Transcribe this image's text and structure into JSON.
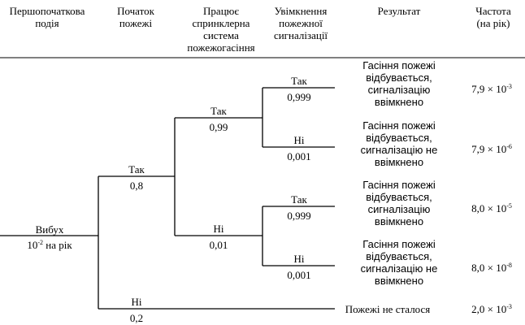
{
  "header": {
    "col1": [
      "Першопочаткова",
      "подія"
    ],
    "col2": [
      "Початок",
      "пожежі"
    ],
    "col3": [
      "Працює",
      "спринклерна",
      "система",
      "пожежогасіння"
    ],
    "col4": [
      "Увімкнення",
      "пожежної",
      "сигналізації"
    ],
    "col5": [
      "Результат"
    ],
    "col6": [
      "Частота",
      "(на рік)"
    ]
  },
  "initiating_event": {
    "name": "Вибух",
    "freq_base": "10",
    "freq_exp": "-2",
    "freq_unit": " на рік"
  },
  "branches": {
    "fire_yes": {
      "label": "Так",
      "prob": "0,8"
    },
    "fire_no": {
      "label": "Ні",
      "prob": "0,2"
    },
    "sprinkler_yes": {
      "label": "Так",
      "prob": "0,99"
    },
    "sprinkler_no": {
      "label": "Ні",
      "prob": "0,01"
    },
    "alarm_yes_1": {
      "label": "Так",
      "prob": "0,999"
    },
    "alarm_no_1": {
      "label": "Ні",
      "prob": "0,001"
    },
    "alarm_yes_2": {
      "label": "Так",
      "prob": "0,999"
    },
    "alarm_no_2": {
      "label": "Ні",
      "prob": "0,001"
    }
  },
  "outcomes": [
    {
      "result": [
        "Гасіння пожежі",
        "відбувається,",
        "сигналізацію",
        "ввімкнено"
      ],
      "freq_mant": "7,9",
      "freq_exp": "-3"
    },
    {
      "result": [
        "Гасіння пожежі",
        "відбувається,",
        "сигналізацію не",
        "ввімкнено"
      ],
      "freq_mant": "7,9",
      "freq_exp": "-6"
    },
    {
      "result": [
        "Гасіння пожежі",
        "відбувається,",
        "сигналізацію",
        "ввімкнено"
      ],
      "freq_mant": "8,0",
      "freq_exp": "-5"
    },
    {
      "result": [
        "Гасіння пожежі",
        "відбувається,",
        "сигналізацію не",
        "ввімкнено"
      ],
      "freq_mant": "8,0",
      "freq_exp": "-8"
    },
    {
      "result": [
        "Пожежі не сталося"
      ],
      "freq_mant": "2,0",
      "freq_exp": "-3"
    }
  ],
  "freq_times": "× 10"
}
